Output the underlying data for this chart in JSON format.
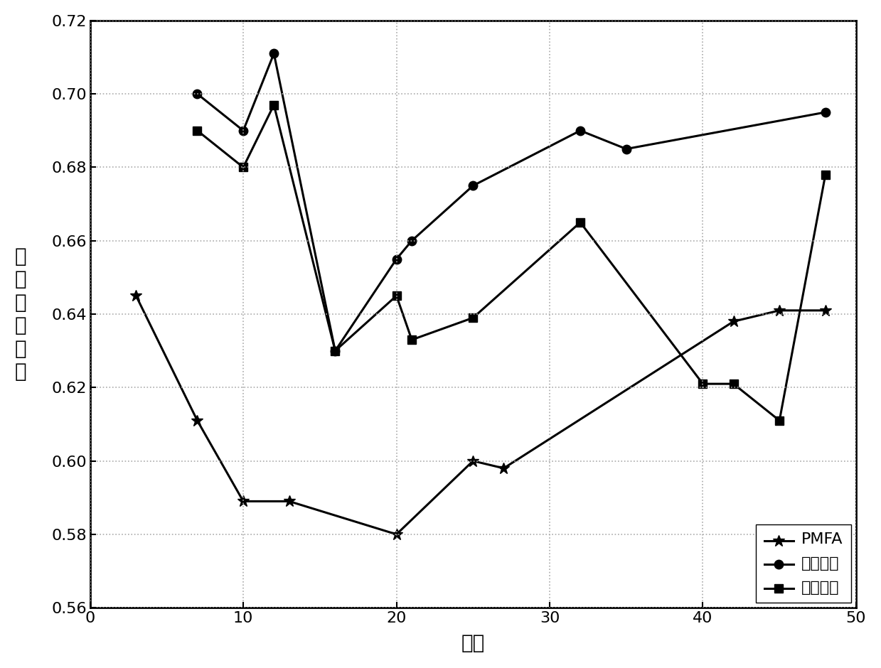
{
  "PMFA_x": [
    3,
    7,
    10,
    13,
    20,
    25,
    27,
    42,
    45,
    48
  ],
  "PMFA_y": [
    0.645,
    0.611,
    0.589,
    0.589,
    0.58,
    0.6,
    0.598,
    0.638,
    0.641,
    0.641
  ],
  "collab_x": [
    7,
    10,
    12,
    16,
    20,
    21,
    25,
    32,
    35,
    48
  ],
  "collab_y": [
    0.7,
    0.69,
    0.711,
    0.63,
    0.655,
    0.66,
    0.675,
    0.69,
    0.685,
    0.695
  ],
  "content_x": [
    7,
    10,
    12,
    16,
    20,
    21,
    25,
    32,
    40,
    42,
    45,
    48
  ],
  "content_y": [
    0.69,
    0.68,
    0.697,
    0.63,
    0.645,
    0.633,
    0.639,
    0.665,
    0.621,
    0.621,
    0.611,
    0.678
  ],
  "xlabel": "时间",
  "ylabel_chars": [
    "个",
    "性",
    "化",
    "准",
    "确",
    "率"
  ],
  "legend_PMFA": "PMFA",
  "legend_collab": "协同过滤",
  "legend_content": "基于内容",
  "xlim": [
    0,
    50
  ],
  "ylim": [
    0.56,
    0.72
  ],
  "yticks": [
    0.56,
    0.58,
    0.6,
    0.62,
    0.64,
    0.66,
    0.68,
    0.7,
    0.72
  ],
  "xticks": [
    0,
    10,
    20,
    30,
    40,
    50
  ],
  "line_color": "#000000",
  "background_color": "#ffffff",
  "grid_color": "#aaaaaa"
}
